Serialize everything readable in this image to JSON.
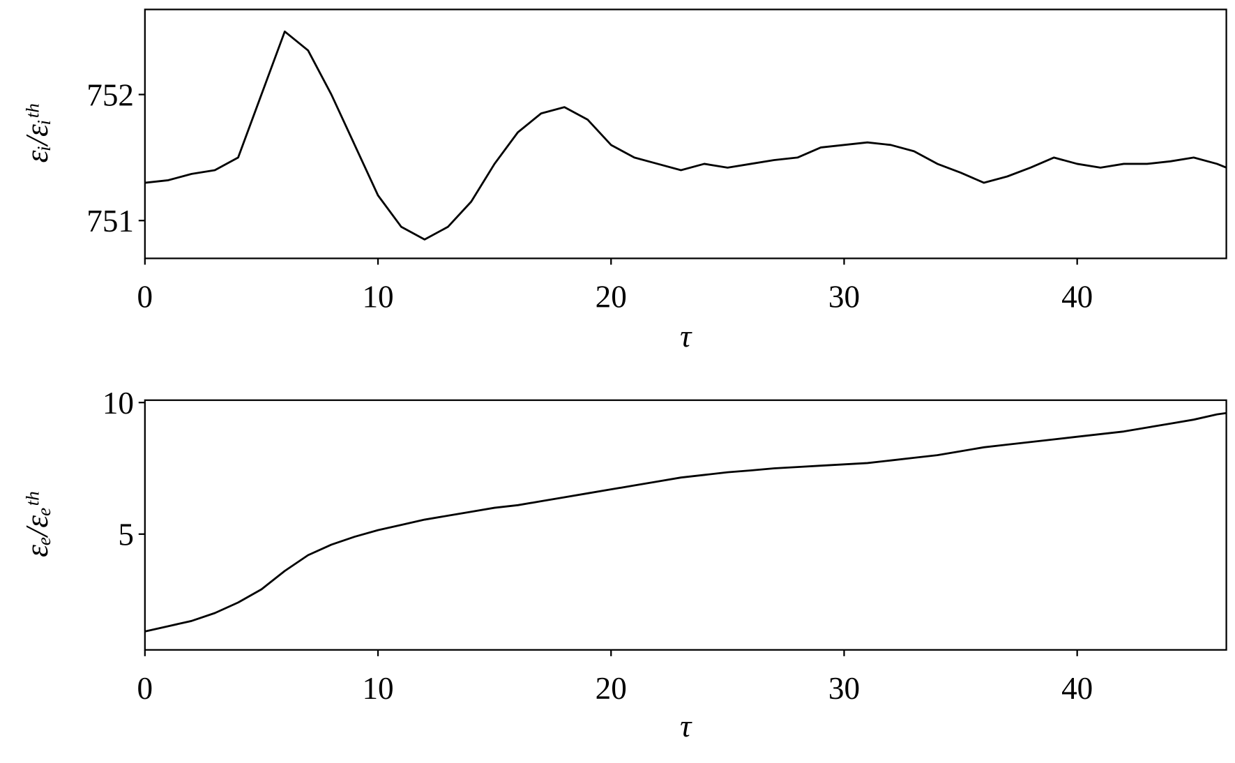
{
  "chart_data": [
    {
      "type": "line",
      "ylabel": "εᵢ/εᵢᵗʰ",
      "xlabel": "τ",
      "color": "#000000",
      "x": [
        0,
        1,
        2,
        3,
        4,
        5,
        6,
        7,
        8,
        9,
        10,
        11,
        12,
        13,
        14,
        15,
        16,
        17,
        18,
        19,
        20,
        21,
        22,
        23,
        24,
        25,
        26,
        27,
        28,
        29,
        30,
        31,
        32,
        33,
        34,
        35,
        36,
        37,
        38,
        39,
        40,
        41,
        42,
        43,
        44,
        45,
        46,
        46.4
      ],
      "values": [
        751.3,
        751.32,
        751.37,
        751.4,
        751.5,
        752.0,
        752.5,
        752.35,
        752.0,
        751.6,
        751.2,
        750.95,
        750.85,
        750.95,
        751.15,
        751.45,
        751.7,
        751.85,
        751.9,
        751.8,
        751.6,
        751.5,
        751.45,
        751.4,
        751.45,
        751.42,
        751.45,
        751.48,
        751.5,
        751.58,
        751.6,
        751.62,
        751.6,
        751.55,
        751.45,
        751.38,
        751.3,
        751.35,
        751.42,
        751.5,
        751.45,
        751.42,
        751.45,
        751.45,
        751.47,
        751.5,
        751.45,
        751.42
      ],
      "xlim": [
        0,
        46.4
      ],
      "xticks": [
        0,
        10,
        20,
        30,
        40
      ],
      "ylim": [
        750.7,
        752.675
      ],
      "yticks": [
        751,
        752
      ]
    },
    {
      "type": "line",
      "ylabel": "εₑ/εₑᵗʰ",
      "xlabel": "τ",
      "color": "#000000",
      "x": [
        0,
        1,
        2,
        3,
        4,
        5,
        6,
        7,
        8,
        9,
        10,
        11,
        12,
        13,
        14,
        15,
        16,
        17,
        18,
        19,
        20,
        21,
        22,
        23,
        24,
        25,
        26,
        27,
        28,
        29,
        30,
        31,
        32,
        33,
        34,
        35,
        36,
        37,
        38,
        39,
        40,
        41,
        42,
        43,
        44,
        45,
        46,
        46.4
      ],
      "values": [
        1.3,
        1.5,
        1.7,
        2.0,
        2.4,
        2.9,
        3.6,
        4.2,
        4.6,
        4.9,
        5.15,
        5.35,
        5.55,
        5.7,
        5.85,
        6.0,
        6.1,
        6.25,
        6.4,
        6.55,
        6.7,
        6.85,
        7.0,
        7.15,
        7.25,
        7.35,
        7.42,
        7.5,
        7.55,
        7.6,
        7.65,
        7.7,
        7.8,
        7.9,
        8.0,
        8.15,
        8.3,
        8.4,
        8.5,
        8.6,
        8.7,
        8.8,
        8.9,
        9.05,
        9.2,
        9.35,
        9.55,
        9.6
      ],
      "xlim": [
        0,
        46.4
      ],
      "xticks": [
        0,
        10,
        20,
        30,
        40
      ],
      "ylim": [
        0.6,
        10.09
      ],
      "yticks": [
        5,
        10
      ]
    }
  ]
}
